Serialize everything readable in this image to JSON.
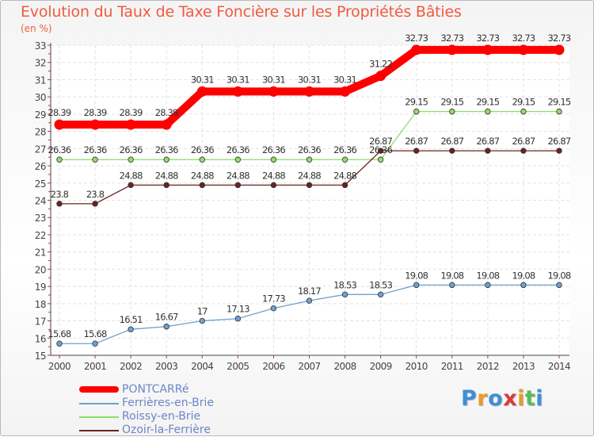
{
  "chart_data": {
    "type": "line",
    "title": "Evolution du Taux de Taxe Foncière sur les Propriétés Bâties",
    "ylabel": "(en %)",
    "xlabel": "",
    "ylim": [
      15,
      33
    ],
    "x": [
      "2000",
      "2001",
      "2002",
      "2003",
      "2004",
      "2005",
      "2006",
      "2007",
      "2008",
      "2009",
      "2010",
      "2011",
      "2012",
      "2013",
      "2014"
    ],
    "series": [
      {
        "name": "PONTCARRé",
        "color": "#ff0000",
        "highlight": true,
        "values": [
          28.39,
          28.39,
          28.39,
          28.39,
          30.31,
          30.31,
          30.31,
          30.31,
          30.31,
          31.22,
          32.73,
          32.73,
          32.73,
          32.73,
          32.73
        ],
        "labels": [
          "28.39",
          "28.39",
          "28.39",
          "28.39",
          "30.31",
          "30.31",
          "30.31",
          "30.31",
          "30.31",
          "31.22",
          "32.73",
          "32.73",
          "32.73",
          "32.73",
          "32.73"
        ]
      },
      {
        "name": "Ferrières-en-Brie",
        "color": "#6fa0cf",
        "highlight": false,
        "values": [
          15.68,
          15.68,
          16.51,
          16.67,
          17,
          17.13,
          17.73,
          18.17,
          18.53,
          18.53,
          19.08,
          19.08,
          19.08,
          19.08,
          19.08
        ],
        "labels": [
          "15.68",
          "15.68",
          "16.51",
          "16.67",
          "17",
          "17.13",
          "17.73",
          "18.17",
          "18.53",
          "18.53",
          "19.08",
          "19.08",
          "19.08",
          "19.08",
          "19.08"
        ]
      },
      {
        "name": "Roissy-en-Brie",
        "color": "#90dc6c",
        "highlight": false,
        "values": [
          26.36,
          26.36,
          26.36,
          26.36,
          26.36,
          26.36,
          26.36,
          26.36,
          26.36,
          26.36,
          29.15,
          29.15,
          29.15,
          29.15,
          29.15
        ],
        "labels": [
          "26.36",
          "26.36",
          "26.36",
          "26.36",
          "26.36",
          "26.36",
          "26.36",
          "26.36",
          "26.36",
          "26.36",
          "29.15",
          "29.15",
          "29.15",
          "29.15",
          "29.15"
        ]
      },
      {
        "name": "Ozoir-la-Ferrière",
        "color": "#6b2222",
        "highlight": false,
        "values": [
          23.8,
          23.8,
          24.88,
          24.88,
          24.88,
          24.88,
          24.88,
          24.88,
          24.88,
          26.87,
          26.87,
          26.87,
          26.87,
          26.87,
          26.87
        ],
        "labels": [
          "23.8",
          "23.8",
          "24.88",
          "24.88",
          "24.88",
          "24.88",
          "24.88",
          "24.88",
          "24.88",
          "26.87",
          "26.87",
          "26.87",
          "26.87",
          "26.87",
          "26.87"
        ]
      }
    ],
    "grid": true,
    "legend": "bottom-left"
  },
  "logo": {
    "letters": [
      "P",
      "r",
      "o",
      "x",
      "i",
      "t",
      "i"
    ],
    "colors": [
      "#3d8fd8",
      "#e89a2a",
      "#3d8fd8",
      "#d63d3d",
      "#e89a2a",
      "#5cb85c",
      "#3d8fd8"
    ]
  }
}
